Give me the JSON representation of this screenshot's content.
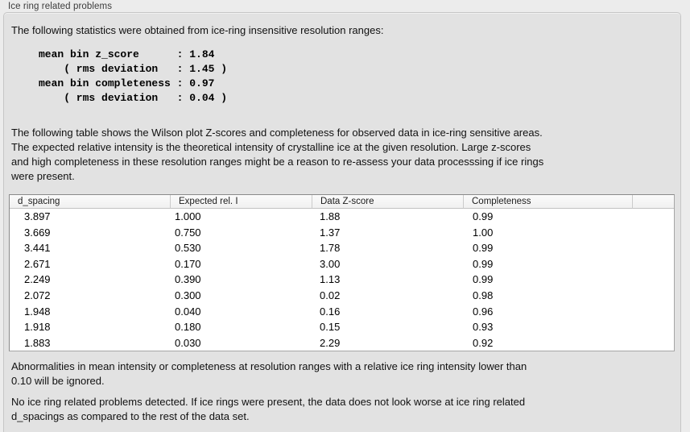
{
  "title": "Ice ring related problems",
  "intro_text": "The following statistics were obtained from ice-ring insensitive resolution ranges:",
  "stats_block": "mean bin z_score      : 1.84\n    ( rms deviation   : 1.45 )\nmean bin completeness : 0.97\n    ( rms deviation   : 0.04 )",
  "stats": {
    "mean_bin_z_score": "1.84",
    "z_score_rms_deviation": "1.45",
    "mean_bin_completeness": "0.97",
    "completeness_rms_deviation": "0.04"
  },
  "table_description": "The following table shows the Wilson plot Z-scores and completeness for observed data in ice-ring sensitive areas.\nThe expected relative intensity is the theoretical intensity of crystalline ice at the given resolution. Large z-scores\nand high completeness in these resolution ranges might be a reason to re-assess your data processsing if ice rings\nwere present.",
  "table": {
    "columns": [
      "d_spacing",
      "Expected rel. I",
      "Data Z-score",
      "Completeness",
      ""
    ],
    "rows": [
      [
        "3.897",
        "1.000",
        "1.88",
        "0.99"
      ],
      [
        "3.669",
        "0.750",
        "1.37",
        "1.00"
      ],
      [
        "3.441",
        "0.530",
        "1.78",
        "0.99"
      ],
      [
        "2.671",
        "0.170",
        "3.00",
        "0.99"
      ],
      [
        "2.249",
        "0.390",
        "1.13",
        "0.99"
      ],
      [
        "2.072",
        "0.300",
        "0.02",
        "0.98"
      ],
      [
        "1.948",
        "0.040",
        "0.16",
        "0.96"
      ],
      [
        "1.918",
        "0.180",
        "0.15",
        "0.93"
      ],
      [
        "1.883",
        "0.030",
        "2.29",
        "0.92"
      ]
    ]
  },
  "abnormalities_note": "Abnormalities in mean intensity or completeness at resolution ranges with a relative ice ring intensity lower than\n0.10 will be ignored.",
  "conclusion": "No ice ring related problems detected. If ice rings were present, the data does not look worse at ice ring related\nd_spacings as compared to the rest of the data set.",
  "colors": {
    "outer_background": "#ececec",
    "panel_background": "#e2e2e2",
    "panel_border": "#c6c6c6",
    "table_background": "#ffffff",
    "table_border": "#8a8a8a",
    "header_background": "#f5f5f5",
    "text": "#111111"
  }
}
